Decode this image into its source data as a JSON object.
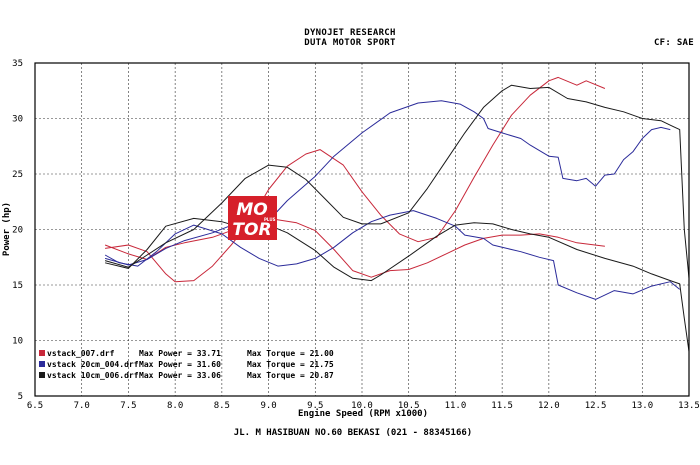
{
  "header": {
    "title": "DYNOJET RESEARCH",
    "subtitle": "DUTA MOTOR SPORT",
    "correction": "CF: SAE"
  },
  "footer": {
    "address": "JL. M HASIBUAN NO.60 BEKASI (021 - 88345166)"
  },
  "logo": {
    "line1": "MO",
    "line2": "TOR",
    "tagline": "PLUS",
    "color": "#d6202a"
  },
  "chart_data": {
    "type": "line",
    "xlabel": "Engine Speed (RPM x1000)",
    "ylabel": "Power (hp)",
    "xlim": [
      6.5,
      13.5
    ],
    "ylim": [
      5,
      35
    ],
    "x_ticks": [
      "6.5",
      "7.0",
      "7.5",
      "8.0",
      "8.5",
      "9.0",
      "9.5",
      "10.0",
      "10.5",
      "11.0",
      "11.5",
      "12.0",
      "12.5",
      "13.0",
      "13.5"
    ],
    "y_ticks": [
      "5",
      "10",
      "15",
      "20",
      "25",
      "30",
      "35"
    ],
    "grid": true,
    "legend_position": "bottom-left",
    "legend": [
      {
        "file": "vstack_007.drf",
        "max_power_label": "Max Power = 33.71",
        "max_torque_label": "Max Torque = 21.00",
        "color": "#c8283a"
      },
      {
        "file": "vstack 20cm_004.drf",
        "max_power_label": "Max Power = 31.60",
        "max_torque_label": "Max Torque = 21.75",
        "color": "#2b2b9a"
      },
      {
        "file": "vstack 10cm_006.drf",
        "max_power_label": "Max Power = 33.06",
        "max_torque_label": "Max Torque = 20.87",
        "color": "#1a1a1a"
      }
    ],
    "series": [
      {
        "name": "vstack_007.drf",
        "color": "#c8283a",
        "power": [
          [
            7.25,
            18.3
          ],
          [
            7.5,
            18.6
          ],
          [
            7.7,
            18.0
          ],
          [
            7.9,
            16.0
          ],
          [
            8.0,
            15.3
          ],
          [
            8.2,
            15.4
          ],
          [
            8.4,
            16.7
          ],
          [
            8.6,
            18.6
          ],
          [
            8.8,
            20.7
          ],
          [
            9.0,
            23.6
          ],
          [
            9.2,
            25.7
          ],
          [
            9.4,
            26.8
          ],
          [
            9.55,
            27.2
          ],
          [
            9.8,
            25.8
          ],
          [
            10.0,
            23.4
          ],
          [
            10.2,
            21.3
          ],
          [
            10.4,
            19.6
          ],
          [
            10.6,
            18.9
          ],
          [
            10.8,
            19.3
          ],
          [
            11.0,
            21.7
          ],
          [
            11.2,
            24.7
          ],
          [
            11.4,
            27.6
          ],
          [
            11.6,
            30.3
          ],
          [
            11.8,
            32.1
          ],
          [
            12.0,
            33.4
          ],
          [
            12.1,
            33.7
          ],
          [
            12.3,
            33.0
          ],
          [
            12.4,
            33.4
          ],
          [
            12.6,
            32.7
          ]
        ],
        "torque": [
          [
            7.25,
            18.6
          ],
          [
            7.5,
            17.8
          ],
          [
            7.7,
            17.3
          ],
          [
            7.9,
            18.4
          ],
          [
            8.1,
            18.8
          ],
          [
            8.4,
            19.3
          ],
          [
            8.7,
            20.2
          ],
          [
            9.0,
            21.0
          ],
          [
            9.3,
            20.6
          ],
          [
            9.5,
            19.9
          ],
          [
            9.7,
            18.2
          ],
          [
            9.9,
            16.3
          ],
          [
            10.1,
            15.7
          ],
          [
            10.3,
            16.3
          ],
          [
            10.5,
            16.4
          ],
          [
            10.7,
            17.0
          ],
          [
            10.9,
            17.8
          ],
          [
            11.1,
            18.6
          ],
          [
            11.3,
            19.2
          ],
          [
            11.5,
            19.5
          ],
          [
            11.7,
            19.5
          ],
          [
            11.9,
            19.6
          ],
          [
            12.1,
            19.3
          ],
          [
            12.3,
            18.8
          ],
          [
            12.6,
            18.5
          ]
        ]
      },
      {
        "name": "vstack 20cm_004.drf",
        "color": "#2b2b9a",
        "power": [
          [
            7.25,
            17.4
          ],
          [
            7.5,
            16.8
          ],
          [
            7.7,
            17.3
          ],
          [
            7.9,
            18.3
          ],
          [
            8.1,
            19.0
          ],
          [
            8.4,
            19.7
          ],
          [
            8.7,
            20.7
          ],
          [
            8.9,
            21.6
          ],
          [
            9.0,
            20.8
          ],
          [
            9.2,
            22.6
          ],
          [
            9.5,
            24.8
          ],
          [
            9.7,
            26.6
          ],
          [
            10.0,
            28.7
          ],
          [
            10.3,
            30.5
          ],
          [
            10.6,
            31.4
          ],
          [
            10.85,
            31.6
          ],
          [
            11.05,
            31.3
          ],
          [
            11.2,
            30.6
          ],
          [
            11.3,
            30.0
          ],
          [
            11.35,
            29.1
          ],
          [
            11.5,
            28.7
          ],
          [
            11.7,
            28.2
          ],
          [
            11.8,
            27.6
          ],
          [
            12.0,
            26.6
          ],
          [
            12.1,
            26.5
          ],
          [
            12.15,
            24.6
          ],
          [
            12.3,
            24.4
          ],
          [
            12.4,
            24.6
          ],
          [
            12.5,
            23.9
          ],
          [
            12.6,
            24.9
          ],
          [
            12.7,
            25.0
          ],
          [
            12.8,
            26.3
          ],
          [
            12.9,
            27.0
          ],
          [
            13.0,
            28.2
          ],
          [
            13.1,
            29.0
          ],
          [
            13.2,
            29.2
          ],
          [
            13.3,
            29.0
          ]
        ],
        "torque": [
          [
            7.25,
            17.7
          ],
          [
            7.4,
            17.0
          ],
          [
            7.6,
            16.7
          ],
          [
            7.8,
            18.0
          ],
          [
            8.0,
            19.6
          ],
          [
            8.2,
            20.4
          ],
          [
            8.5,
            19.6
          ],
          [
            8.7,
            18.4
          ],
          [
            8.9,
            17.4
          ],
          [
            9.1,
            16.7
          ],
          [
            9.3,
            16.9
          ],
          [
            9.5,
            17.4
          ],
          [
            9.7,
            18.4
          ],
          [
            9.9,
            19.7
          ],
          [
            10.1,
            20.7
          ],
          [
            10.3,
            21.3
          ],
          [
            10.55,
            21.7
          ],
          [
            10.8,
            21.0
          ],
          [
            11.0,
            20.3
          ],
          [
            11.1,
            19.5
          ],
          [
            11.3,
            19.2
          ],
          [
            11.4,
            18.6
          ],
          [
            11.55,
            18.3
          ],
          [
            11.7,
            18.0
          ],
          [
            11.9,
            17.5
          ],
          [
            12.05,
            17.2
          ],
          [
            12.1,
            15.0
          ],
          [
            12.3,
            14.3
          ],
          [
            12.5,
            13.7
          ],
          [
            12.7,
            14.5
          ],
          [
            12.9,
            14.2
          ],
          [
            13.1,
            14.9
          ],
          [
            13.3,
            15.3
          ],
          [
            13.4,
            14.6
          ]
        ]
      },
      {
        "name": "vstack 10cm_006.drf",
        "color": "#1a1a1a",
        "power": [
          [
            7.25,
            17.2
          ],
          [
            7.5,
            16.6
          ],
          [
            7.7,
            17.7
          ],
          [
            7.9,
            18.8
          ],
          [
            8.2,
            20.0
          ],
          [
            8.5,
            22.4
          ],
          [
            8.75,
            24.6
          ],
          [
            9.0,
            25.8
          ],
          [
            9.2,
            25.6
          ],
          [
            9.4,
            24.5
          ],
          [
            9.6,
            22.8
          ],
          [
            9.8,
            21.1
          ],
          [
            10.0,
            20.5
          ],
          [
            10.2,
            20.5
          ],
          [
            10.5,
            21.5
          ],
          [
            10.7,
            23.7
          ],
          [
            10.9,
            26.2
          ],
          [
            11.1,
            28.7
          ],
          [
            11.3,
            31.0
          ],
          [
            11.5,
            32.5
          ],
          [
            11.6,
            33.0
          ],
          [
            11.8,
            32.7
          ],
          [
            12.0,
            32.8
          ],
          [
            12.2,
            31.8
          ],
          [
            12.4,
            31.5
          ],
          [
            12.6,
            31.0
          ],
          [
            12.8,
            30.6
          ],
          [
            13.0,
            30.0
          ],
          [
            13.2,
            29.8
          ],
          [
            13.3,
            29.4
          ],
          [
            13.4,
            29.0
          ],
          [
            13.45,
            20.0
          ],
          [
            13.5,
            15.6
          ]
        ],
        "torque": [
          [
            7.25,
            17.0
          ],
          [
            7.5,
            16.5
          ],
          [
            7.7,
            18.2
          ],
          [
            7.9,
            20.3
          ],
          [
            8.2,
            21.0
          ],
          [
            8.5,
            20.7
          ],
          [
            8.7,
            20.2
          ],
          [
            8.9,
            20.2
          ],
          [
            9.0,
            20.4
          ],
          [
            9.2,
            19.7
          ],
          [
            9.5,
            18.1
          ],
          [
            9.7,
            16.6
          ],
          [
            9.9,
            15.6
          ],
          [
            10.1,
            15.4
          ],
          [
            10.2,
            15.9
          ],
          [
            10.5,
            17.6
          ],
          [
            10.8,
            19.4
          ],
          [
            11.0,
            20.4
          ],
          [
            11.2,
            20.6
          ],
          [
            11.4,
            20.5
          ],
          [
            11.6,
            20.0
          ],
          [
            11.8,
            19.6
          ],
          [
            12.0,
            19.3
          ],
          [
            12.3,
            18.2
          ],
          [
            12.6,
            17.4
          ],
          [
            12.9,
            16.7
          ],
          [
            13.1,
            16.0
          ],
          [
            13.3,
            15.4
          ],
          [
            13.4,
            15.1
          ],
          [
            13.45,
            12.0
          ],
          [
            13.5,
            9.0
          ]
        ]
      }
    ]
  }
}
